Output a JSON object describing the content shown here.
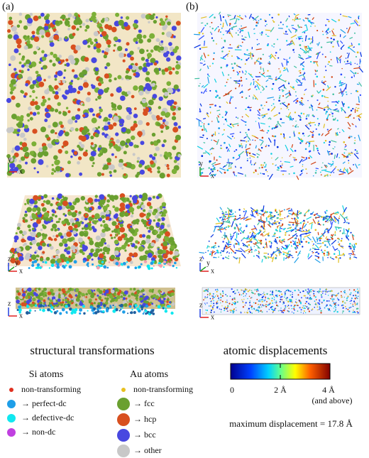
{
  "panels": {
    "a": {
      "label": "(a)",
      "caption": "structural transformations"
    },
    "b": {
      "label": "(b)",
      "caption": "atomic displacements"
    }
  },
  "axes": {
    "x": "x",
    "y": "y",
    "z": "z"
  },
  "legend": {
    "si": {
      "title": "Si atoms",
      "items": [
        "non-transforming",
        "→ perfect-dc",
        "→ defective-dc",
        "→ non-dc"
      ]
    },
    "au": {
      "title": "Au atoms",
      "items": [
        "non-transforming",
        "→ fcc",
        "→ hcp",
        "→ bcc",
        "→ other"
      ]
    }
  },
  "colorbar": {
    "ticks": [
      "0",
      "2 Å",
      "4 Å"
    ],
    "note": "(and above)",
    "max": "maximum displacement = 17.8 Å"
  }
}
